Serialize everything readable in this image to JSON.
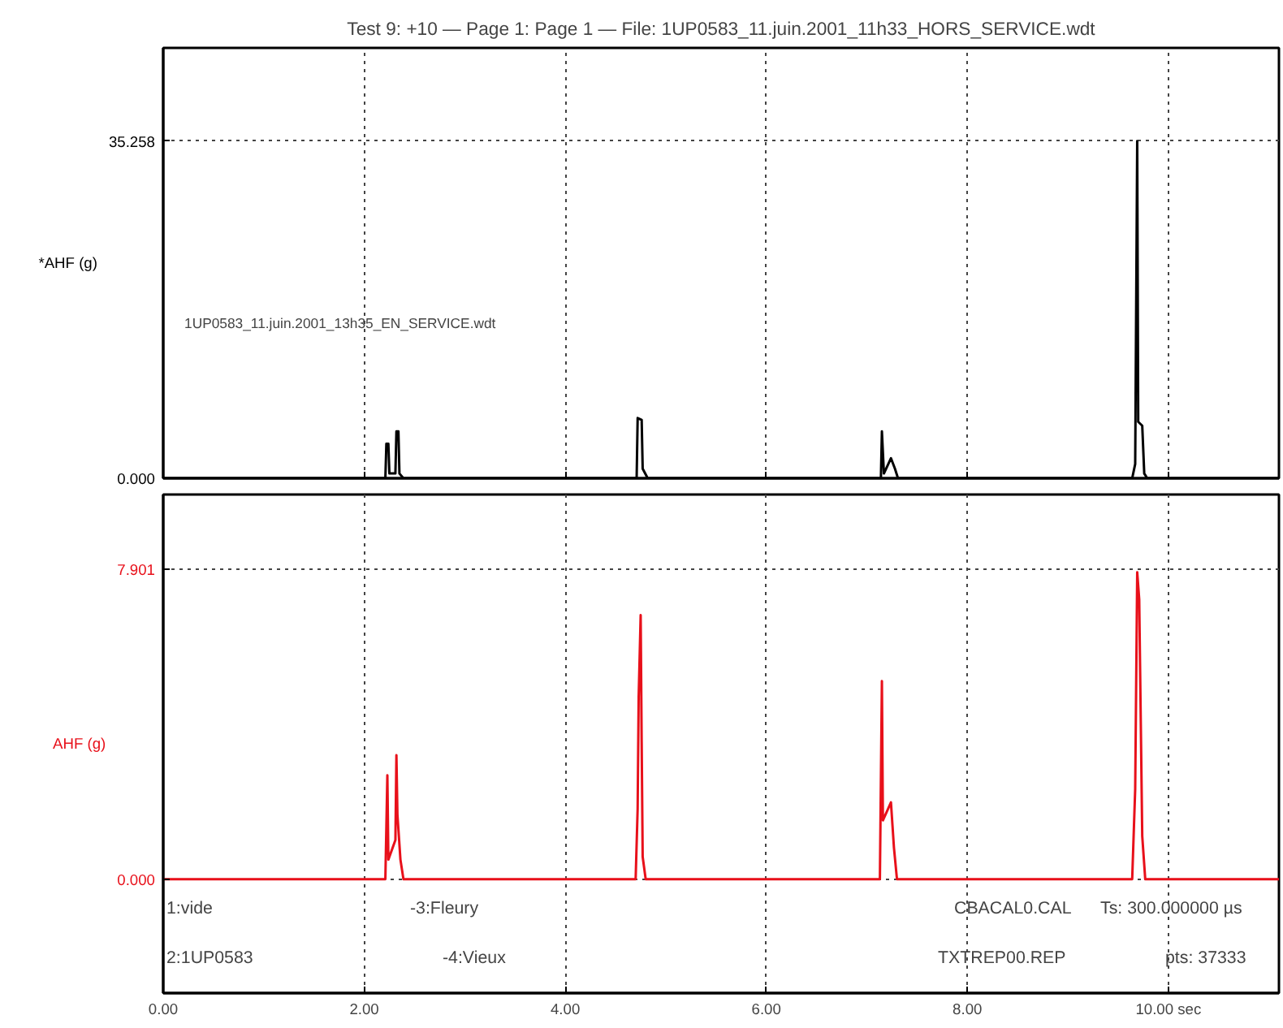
{
  "chart_data": [
    {
      "type": "line",
      "title": "Test 9: +10 — Page 1: Page 1 — File: 1UP0583_11.juin.2001_11h33_HORS_SERVICE.wdt",
      "ylabel": "*AHF (g)",
      "annotations": [
        "1UP0583_11.juin.2001_13h35_EN_SERVICE.wdt"
      ],
      "series": [
        {
          "color": "#000000",
          "x": [
            0,
            2.21,
            2.22,
            2.24,
            2.25,
            2.31,
            2.32,
            2.34,
            2.35,
            2.39,
            4.71,
            4.72,
            4.76,
            4.77,
            4.82,
            7.14,
            7.15,
            7.17,
            7.24,
            7.28,
            7.31,
            9.64,
            9.67,
            9.69,
            9.7,
            9.74,
            9.76,
            9.79,
            11.1
          ],
          "values": [
            0,
            0,
            3.6,
            3.6,
            0.5,
            0.5,
            4.9,
            4.9,
            0.5,
            0,
            0,
            6.3,
            6.1,
            1.0,
            0,
            0,
            4.9,
            0.5,
            2.1,
            1.0,
            0,
            0,
            1.5,
            35.258,
            5.9,
            5.5,
            0.5,
            0,
            0
          ]
        }
      ],
      "xlim": [
        0,
        11.1
      ],
      "ylim": [
        0,
        45
      ],
      "xticks": [
        0,
        2,
        4,
        6,
        8,
        10
      ],
      "yticks": [
        {
          "value": 0,
          "label": "0.000"
        },
        35.258
      ],
      "tick_labels": "y",
      "grid": true
    },
    {
      "type": "line",
      "ylabel": "AHF (g)",
      "annotations": [
        "1:vide",
        "2:1UP0583",
        "-3:Fleury",
        "-4:Vieux",
        "CBACAL0.CAL",
        "TXTREP00.REP",
        "Ts: 300.000000 µs",
        "pts: 37333"
      ],
      "series": [
        {
          "color": "#e8101a",
          "x": [
            0,
            2.21,
            2.23,
            2.24,
            2.31,
            2.32,
            2.33,
            2.36,
            2.39,
            4.7,
            4.72,
            4.73,
            4.75,
            4.76,
            4.77,
            4.8,
            7.13,
            7.15,
            7.16,
            7.24,
            7.27,
            7.3,
            9.64,
            9.67,
            9.69,
            9.71,
            9.74,
            9.77,
            11.1
          ],
          "values": [
            0,
            0,
            2.65,
            0.5,
            1.0,
            3.16,
            1.65,
            0.5,
            0,
            0,
            1.8,
            4.63,
            6.73,
            3.5,
            0.57,
            0,
            0,
            5.05,
            1.5,
            1.96,
            0.8,
            0,
            0,
            2.3,
            7.82,
            7.13,
            1.1,
            0,
            0
          ]
        }
      ],
      "xlim": [
        0,
        11.1
      ],
      "ylim": [
        -2.9,
        9.8
      ],
      "xticks": [
        {
          "value": 0,
          "label": "0.00"
        },
        {
          "value": 2,
          "label": "2.00"
        },
        {
          "value": 4,
          "label": "4.00"
        },
        {
          "value": 6,
          "label": "6.00"
        },
        {
          "value": 8,
          "label": "8.00"
        },
        {
          "value": 10,
          "label": "10.00 sec"
        }
      ],
      "yticks": [
        {
          "value": 0,
          "label": "0.000"
        },
        7.901
      ],
      "grid": true
    }
  ]
}
